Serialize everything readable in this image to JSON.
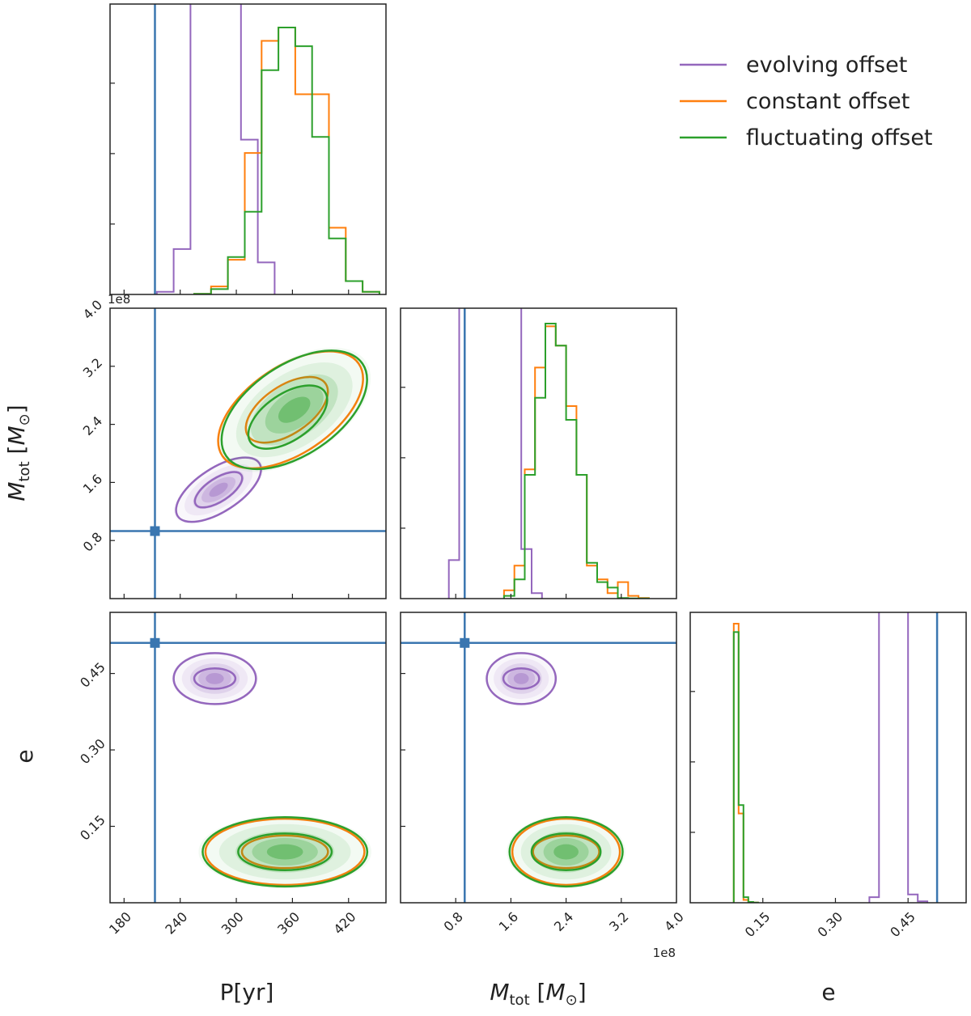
{
  "figure": {
    "legend_title": "",
    "legend": [
      "evolving offset",
      "constant offset",
      "fluctuating offset"
    ]
  },
  "chart_data": {
    "type": "corner",
    "parameters": [
      {
        "key": "P",
        "label": "P[yr]",
        "range": [
          165,
          460
        ],
        "ticks": [
          "180",
          "240",
          "300",
          "360",
          "420"
        ],
        "tick_values": [
          180,
          240,
          300,
          360,
          420
        ],
        "offset_text": ""
      },
      {
        "key": "M",
        "label_main": "M",
        "label_sub": "tot",
        "label_unit": " [M",
        "label_unit_sub": "⊙",
        "label_close": "]",
        "range": [
          0,
          4.0
        ],
        "ticks": [
          "0.8",
          "1.6",
          "2.4",
          "3.2",
          "4.0"
        ],
        "tick_values": [
          0.8,
          1.6,
          2.4,
          3.2,
          4.0
        ],
        "offset_text": "1e8"
      },
      {
        "key": "e",
        "label": "e",
        "range": [
          0,
          0.57
        ],
        "ticks": [
          "0.15",
          "0.30",
          "0.45"
        ],
        "tick_values": [
          0.15,
          0.3,
          0.45
        ],
        "offset_text": ""
      }
    ],
    "truth": {
      "P": 213,
      "M": 0.93,
      "e": 0.51
    },
    "colors": {
      "evolving": "#9467bd",
      "constant": "#ff7f0e",
      "fluctuating": "#2ca02c",
      "truth": "#3a76b0"
    },
    "series": [
      {
        "name": "evolving offset",
        "color": "#9467bd",
        "hist_P": {
          "edges": [
            215,
            233,
            251,
            269,
            287,
            305,
            323,
            341
          ],
          "counts": [
            0.01,
            0.17,
            5.0,
            5.0,
            5.0,
            0.58,
            0.12
          ]
        },
        "hist_M": {
          "edges": [
            0.7,
            0.85,
            1.0,
            1.15,
            1.3,
            1.45,
            1.6,
            1.75,
            1.9,
            2.05
          ],
          "counts": [
            0.14,
            1.5,
            3.0,
            3.0,
            3.0,
            3.0,
            3.0,
            0.18,
            0.02
          ]
        },
        "hist_e": {
          "edges": [
            0.37,
            0.39,
            0.41,
            0.43,
            0.45,
            0.47,
            0.49
          ],
          "counts": [
            0.02,
            1.62,
            3.0,
            1.36,
            0.03,
            0.005
          ]
        },
        "contours_PM": [
          {
            "cx": 281,
            "cy": 1.5,
            "rx": 52,
            "ry": 0.3,
            "rot": -33
          },
          {
            "cx": 281,
            "cy": 1.5,
            "rx": 29,
            "ry": 0.16,
            "rot": -33
          }
        ],
        "contours_Pe": [
          {
            "cx": 277,
            "cy": 0.44,
            "rx": 44,
            "ry": 0.05
          },
          {
            "cx": 277,
            "cy": 0.44,
            "rx": 22,
            "ry": 0.02
          }
        ],
        "contours_Me": [
          {
            "cx": 1.75,
            "cy": 0.44,
            "rx": 0.5,
            "ry": 0.05
          },
          {
            "cx": 1.75,
            "cy": 0.44,
            "rx": 0.26,
            "ry": 0.02
          }
        ]
      },
      {
        "name": "constant offset",
        "color": "#ff7f0e",
        "hist_P": {
          "edges": [
            255,
            273,
            291,
            309,
            327,
            345,
            363,
            381,
            399,
            417,
            435,
            453
          ],
          "counts": [
            0.002,
            0.03,
            0.13,
            0.53,
            0.95,
            1.0,
            0.75,
            0.75,
            0.25,
            0.05,
            0.01
          ]
        },
        "hist_M": {
          "edges": [
            1.5,
            1.65,
            1.8,
            1.95,
            2.1,
            2.25,
            2.4,
            2.55,
            2.7,
            2.85,
            3.0,
            3.15,
            3.3,
            3.45,
            3.6
          ],
          "counts": [
            0.03,
            0.12,
            0.47,
            0.84,
            0.99,
            0.92,
            0.7,
            0.45,
            0.12,
            0.07,
            0.02,
            0.06,
            0.01,
            0.002
          ]
        },
        "hist_e": {
          "edges": [
            0.09,
            0.1,
            0.11,
            0.12,
            0.13,
            0.14
          ],
          "counts": [
            1.0,
            0.32,
            0.01,
            0.002,
            0.001
          ]
        },
        "contours_PM": [
          {
            "cx": 358,
            "cy": 2.6,
            "rx": 88,
            "ry": 0.6,
            "rot": -34
          },
          {
            "cx": 354,
            "cy": 2.6,
            "rx": 50,
            "ry": 0.33,
            "rot": -34
          }
        ],
        "contours_Pe": [
          {
            "cx": 352,
            "cy": 0.1,
            "rx": 85,
            "ry": 0.065
          },
          {
            "cx": 352,
            "cy": 0.1,
            "rx": 46,
            "ry": 0.032
          }
        ],
        "contours_Me": [
          {
            "cx": 2.4,
            "cy": 0.1,
            "rx": 0.78,
            "ry": 0.065
          },
          {
            "cx": 2.4,
            "cy": 0.1,
            "rx": 0.48,
            "ry": 0.032
          }
        ]
      },
      {
        "name": "fluctuating offset",
        "color": "#2ca02c",
        "hist_P": {
          "edges": [
            255,
            273,
            291,
            309,
            327,
            345,
            363,
            381,
            399,
            417,
            435,
            453
          ],
          "counts": [
            0.002,
            0.02,
            0.14,
            0.31,
            0.84,
            1.0,
            0.93,
            0.59,
            0.21,
            0.05,
            0.01
          ]
        },
        "hist_M": {
          "edges": [
            1.5,
            1.65,
            1.8,
            1.95,
            2.1,
            2.25,
            2.4,
            2.55,
            2.7,
            2.85,
            3.0,
            3.15,
            3.3,
            3.45,
            3.6
          ],
          "counts": [
            0.01,
            0.07,
            0.45,
            0.73,
            1.0,
            0.92,
            0.65,
            0.45,
            0.13,
            0.06,
            0.04,
            0.002,
            0.001,
            0.001
          ]
        },
        "hist_e": {
          "edges": [
            0.09,
            0.1,
            0.11,
            0.12,
            0.13,
            0.14
          ],
          "counts": [
            0.97,
            0.35,
            0.02,
            0.003,
            0.001
          ]
        },
        "contours_PM": [
          {
            "cx": 362,
            "cy": 2.6,
            "rx": 88,
            "ry": 0.62,
            "rot": -34
          },
          {
            "cx": 355,
            "cy": 2.5,
            "rx": 48,
            "ry": 0.32,
            "rot": -34
          }
        ],
        "contours_Pe": [
          {
            "cx": 352,
            "cy": 0.1,
            "rx": 88,
            "ry": 0.068
          },
          {
            "cx": 352,
            "cy": 0.1,
            "rx": 50,
            "ry": 0.036
          }
        ],
        "contours_Me": [
          {
            "cx": 2.4,
            "cy": 0.1,
            "rx": 0.82,
            "ry": 0.068
          },
          {
            "cx": 2.4,
            "cy": 0.1,
            "rx": 0.5,
            "ry": 0.036
          }
        ]
      }
    ]
  }
}
